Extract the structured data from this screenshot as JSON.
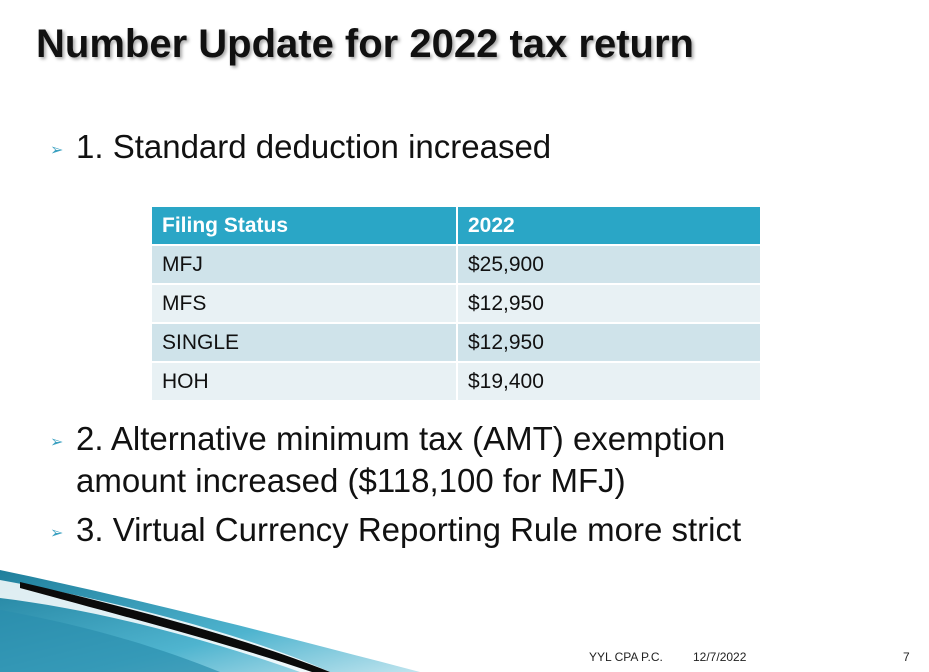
{
  "slide": {
    "title": "Number Update for 2022 tax return",
    "bullets": [
      {
        "text": "1. Standard deduction increased"
      },
      {
        "line1": "2. Alternative minimum tax (AMT) exemption",
        "line2": "amount increased ($118,100  for MFJ)"
      },
      {
        "text": "3. Virtual Currency Reporting Rule more strict"
      }
    ],
    "bullet_glyph": "➢",
    "table": {
      "headers": [
        "Filing Status",
        "2022"
      ],
      "rows": [
        [
          "MFJ",
          "$25,900"
        ],
        [
          "MFS",
          "$12,950"
        ],
        [
          "SINGLE",
          "$12,950"
        ],
        [
          "HOH",
          "$19,400"
        ]
      ]
    },
    "footer": {
      "company": "YYL CPA P.C.",
      "date": "12/7/2022",
      "page": "7"
    },
    "colors": {
      "table_header": "#2aa6c6",
      "row_dark": "#cfe3ea",
      "row_light": "#e8f1f4",
      "bullet_accent": "#3aa0c0"
    }
  }
}
